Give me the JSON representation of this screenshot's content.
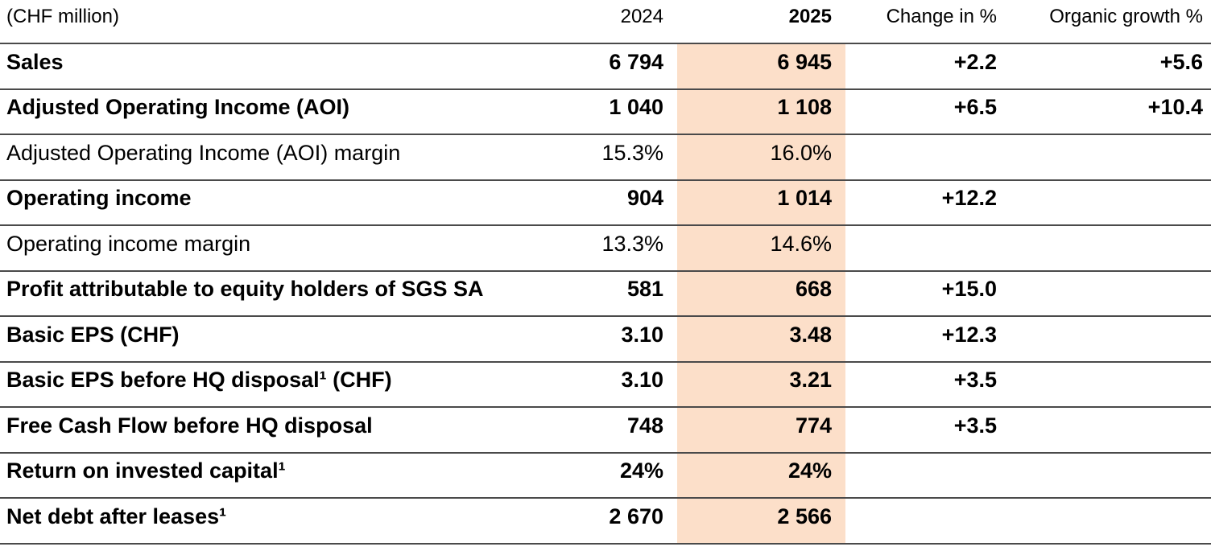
{
  "theme": {
    "highlight_color": "#fcdfc9",
    "line_color": "#4a4a4a",
    "text_color": "#000000"
  },
  "table": {
    "unit_label": "(CHF million)",
    "columns": [
      "2024",
      "2025",
      "Change in %",
      "Organic growth %"
    ],
    "rows": [
      {
        "label": "Sales",
        "bold": true,
        "v2024": "6 794",
        "v2025": "6 945",
        "change": "+2.2",
        "organic": "+5.6"
      },
      {
        "label": "Adjusted Operating Income (AOI)",
        "bold": true,
        "v2024": "1 040",
        "v2025": "1 108",
        "change": "+6.5",
        "organic": "+10.4"
      },
      {
        "label": "Adjusted Operating Income (AOI) margin",
        "bold": false,
        "v2024": "15.3%",
        "v2025": "16.0%",
        "change": "",
        "organic": ""
      },
      {
        "label": "Operating income",
        "bold": true,
        "v2024": "904",
        "v2025": "1 014",
        "change": "+12.2",
        "organic": ""
      },
      {
        "label": "Operating income margin",
        "bold": false,
        "v2024": "13.3%",
        "v2025": "14.6%",
        "change": "",
        "organic": ""
      },
      {
        "label": "Profit attributable to equity holders of SGS SA",
        "bold": true,
        "v2024": "581",
        "v2025": "668",
        "change": "+15.0",
        "organic": ""
      },
      {
        "label": "Basic EPS (CHF)",
        "bold": true,
        "v2024": "3.10",
        "v2025": "3.48",
        "change": "+12.3",
        "organic": ""
      },
      {
        "label": "Basic EPS before HQ disposal¹ (CHF)",
        "bold": true,
        "v2024": "3.10",
        "v2025": "3.21",
        "change": "+3.5",
        "organic": ""
      },
      {
        "label": "Free Cash Flow before HQ disposal",
        "bold": true,
        "v2024": "748",
        "v2025": "774",
        "change": "+3.5",
        "organic": ""
      },
      {
        "label": "Return on invested capital¹",
        "bold": true,
        "v2024": "24%",
        "v2025": "24%",
        "change": "",
        "organic": ""
      },
      {
        "label": "Net debt after leases¹",
        "bold": true,
        "v2024": "2 670",
        "v2025": "2 566",
        "change": "",
        "organic": ""
      }
    ]
  }
}
